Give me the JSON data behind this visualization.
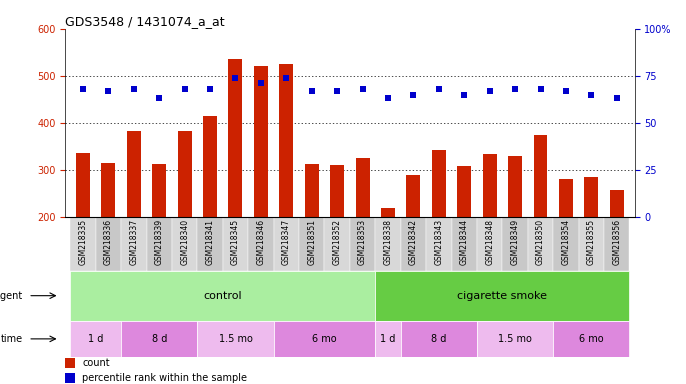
{
  "title": "GDS3548 / 1431074_a_at",
  "samples": [
    "GSM218335",
    "GSM218336",
    "GSM218337",
    "GSM218339",
    "GSM218340",
    "GSM218341",
    "GSM218345",
    "GSM218346",
    "GSM218347",
    "GSM218351",
    "GSM218352",
    "GSM218353",
    "GSM218338",
    "GSM218342",
    "GSM218343",
    "GSM218344",
    "GSM218348",
    "GSM218349",
    "GSM218350",
    "GSM218354",
    "GSM218355",
    "GSM218356"
  ],
  "counts": [
    335,
    315,
    382,
    312,
    382,
    415,
    535,
    520,
    525,
    313,
    310,
    325,
    218,
    290,
    342,
    308,
    334,
    330,
    374,
    280,
    285,
    257
  ],
  "percentile_ranks": [
    68,
    67,
    68,
    63,
    68,
    68,
    74,
    71,
    74,
    67,
    67,
    68,
    63,
    65,
    68,
    65,
    67,
    68,
    68,
    67,
    65,
    63
  ],
  "ylim_left": [
    200,
    600
  ],
  "ylim_right": [
    0,
    100
  ],
  "yticks_left": [
    200,
    300,
    400,
    500,
    600
  ],
  "yticks_right": [
    0,
    25,
    50,
    75,
    100
  ],
  "bar_color": "#cc2200",
  "dot_color": "#0000cc",
  "agent_control_label": "control",
  "agent_smoke_label": "cigarette smoke",
  "agent_control_color": "#aaeea0",
  "agent_smoke_color": "#66cc44",
  "time_segs_control": [
    {
      "label": "1 d",
      "start": 0,
      "end": 1,
      "color": "#eebbee"
    },
    {
      "label": "8 d",
      "start": 2,
      "end": 4,
      "color": "#dd88dd"
    },
    {
      "label": "1.5 mo",
      "start": 5,
      "end": 7,
      "color": "#eebbee"
    },
    {
      "label": "6 mo",
      "start": 8,
      "end": 11,
      "color": "#dd88dd"
    }
  ],
  "time_segs_smoke": [
    {
      "label": "1 d",
      "start": 12,
      "end": 12,
      "color": "#eebbee"
    },
    {
      "label": "8 d",
      "start": 13,
      "end": 15,
      "color": "#dd88dd"
    },
    {
      "label": "1.5 mo",
      "start": 16,
      "end": 18,
      "color": "#eebbee"
    },
    {
      "label": "6 mo",
      "start": 19,
      "end": 21,
      "color": "#dd88dd"
    }
  ],
  "background_color": "#ffffff",
  "plot_bg_color": "#ffffff",
  "label_bg_color": "#d8d8d8",
  "label_bg_alt_color": "#c8c8c8"
}
